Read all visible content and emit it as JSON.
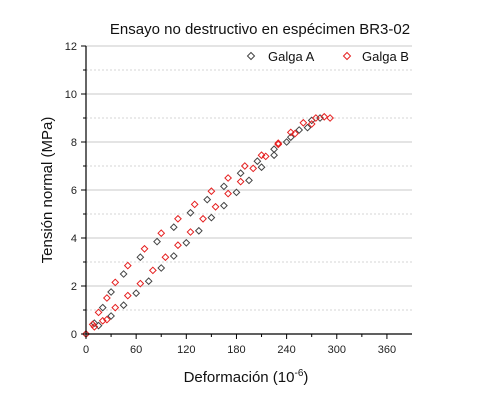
{
  "chart_data": {
    "type": "scatter",
    "title": "Ensayo no destructivo en espécimen BR3-02",
    "xlabel": "Deformación (10",
    "xlabel_sup": "-6",
    "xlabel_suffix": ")",
    "ylabel": "Tensión normal (MPa)",
    "xlim": [
      0,
      390
    ],
    "ylim": [
      0,
      12
    ],
    "x_ticks": [
      0,
      60,
      120,
      180,
      240,
      300,
      360
    ],
    "y_ticks": [
      0,
      2,
      4,
      6,
      8,
      10,
      12
    ],
    "grid": "horizontal",
    "legend_position": "top-right",
    "series": [
      {
        "name": "Galga A",
        "marker": "diamond",
        "color": "#444444",
        "points": [
          [
            0,
            0
          ],
          [
            15,
            0.35
          ],
          [
            30,
            0.75
          ],
          [
            45,
            1.2
          ],
          [
            60,
            1.7
          ],
          [
            75,
            2.2
          ],
          [
            90,
            2.75
          ],
          [
            105,
            3.25
          ],
          [
            120,
            3.8
          ],
          [
            135,
            4.3
          ],
          [
            150,
            4.85
          ],
          [
            165,
            5.35
          ],
          [
            180,
            5.9
          ],
          [
            195,
            6.4
          ],
          [
            210,
            6.95
          ],
          [
            225,
            7.45
          ],
          [
            240,
            8.0
          ],
          [
            255,
            8.5
          ],
          [
            270,
            8.9
          ],
          [
            280,
            9.0
          ],
          [
            265,
            8.6
          ],
          [
            245,
            8.2
          ],
          [
            225,
            7.7
          ],
          [
            205,
            7.2
          ],
          [
            185,
            6.7
          ],
          [
            165,
            6.15
          ],
          [
            145,
            5.6
          ],
          [
            125,
            5.05
          ],
          [
            105,
            4.45
          ],
          [
            85,
            3.85
          ],
          [
            65,
            3.2
          ],
          [
            45,
            2.5
          ],
          [
            30,
            1.75
          ],
          [
            20,
            1.1
          ],
          [
            10,
            0.45
          ]
        ]
      },
      {
        "name": "Galga B",
        "marker": "diamond",
        "color": "#e62020",
        "points": [
          [
            0,
            0
          ],
          [
            10,
            0.3
          ],
          [
            20,
            0.55
          ],
          [
            25,
            0.6
          ],
          [
            35,
            1.1
          ],
          [
            50,
            1.6
          ],
          [
            65,
            2.1
          ],
          [
            80,
            2.65
          ],
          [
            95,
            3.2
          ],
          [
            110,
            3.7
          ],
          [
            125,
            4.25
          ],
          [
            140,
            4.8
          ],
          [
            155,
            5.3
          ],
          [
            170,
            5.85
          ],
          [
            185,
            6.35
          ],
          [
            200,
            6.9
          ],
          [
            215,
            7.4
          ],
          [
            230,
            7.95
          ],
          [
            245,
            8.4
          ],
          [
            260,
            8.8
          ],
          [
            275,
            9.0
          ],
          [
            285,
            9.05
          ],
          [
            292,
            9.0
          ],
          [
            270,
            8.75
          ],
          [
            250,
            8.35
          ],
          [
            230,
            7.9
          ],
          [
            210,
            7.45
          ],
          [
            190,
            7.0
          ],
          [
            170,
            6.5
          ],
          [
            150,
            5.95
          ],
          [
            130,
            5.4
          ],
          [
            110,
            4.8
          ],
          [
            90,
            4.2
          ],
          [
            70,
            3.55
          ],
          [
            50,
            2.85
          ],
          [
            35,
            2.15
          ],
          [
            25,
            1.5
          ],
          [
            15,
            0.9
          ],
          [
            8,
            0.4
          ]
        ]
      }
    ]
  }
}
